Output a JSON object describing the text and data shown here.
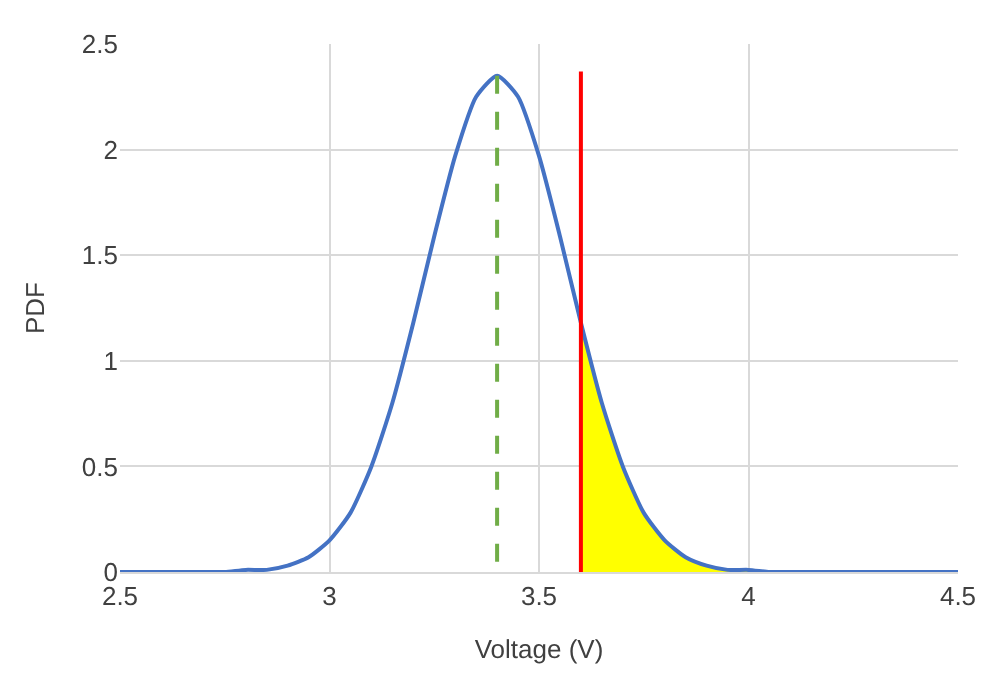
{
  "chart_data": {
    "type": "line",
    "xlabel": "Voltage (V)",
    "ylabel": "PDF",
    "xlim": [
      2.5,
      4.5
    ],
    "xticks": [
      2.5,
      3,
      3.5,
      4,
      4.5
    ],
    "ylim": [
      0,
      2.5
    ],
    "yticks": [
      0,
      0.5,
      1,
      1.5,
      2,
      2.5
    ],
    "grid": true,
    "series": [
      {
        "type": "area",
        "color": "#ffff00",
        "x": [
          3.6,
          3.65,
          3.7,
          3.75,
          3.8,
          3.85,
          3.9,
          3.95,
          4.0
        ],
        "values": [
          1.18,
          0.8,
          0.5,
          0.28,
          0.15,
          0.07,
          0.03,
          0.01,
          0.01
        ]
      },
      {
        "color": "#4472c4",
        "line_style": "solid",
        "x": [
          2.5,
          2.55,
          2.6,
          2.65,
          2.7,
          2.75,
          2.8,
          2.85,
          2.9,
          2.95,
          3.0,
          3.05,
          3.1,
          3.15,
          3.2,
          3.25,
          3.3,
          3.35,
          3.4,
          3.45,
          3.5,
          3.55,
          3.6,
          3.65,
          3.7,
          3.75,
          3.8,
          3.85,
          3.9,
          3.95,
          4.0,
          4.05,
          4.1,
          4.15,
          4.2,
          4.25,
          4.3,
          4.35,
          4.4,
          4.45,
          4.5
        ],
        "values": [
          0,
          0,
          0,
          0,
          0,
          0,
          0.01,
          0.01,
          0.03,
          0.07,
          0.15,
          0.28,
          0.5,
          0.8,
          1.18,
          1.59,
          1.97,
          2.25,
          2.35,
          2.25,
          1.97,
          1.59,
          1.18,
          0.8,
          0.5,
          0.28,
          0.15,
          0.07,
          0.03,
          0.01,
          0.01,
          0,
          0,
          0,
          0,
          0,
          0,
          0,
          0,
          0,
          0
        ]
      },
      {
        "color": "#70ad47",
        "line_style": "dashed",
        "x": [
          3.4,
          3.4
        ],
        "values": [
          2.35,
          0
        ]
      },
      {
        "color": "#ff0000",
        "line_style": "solid",
        "x": [
          3.6,
          3.6
        ],
        "values": [
          0,
          2.37
        ]
      }
    ]
  }
}
